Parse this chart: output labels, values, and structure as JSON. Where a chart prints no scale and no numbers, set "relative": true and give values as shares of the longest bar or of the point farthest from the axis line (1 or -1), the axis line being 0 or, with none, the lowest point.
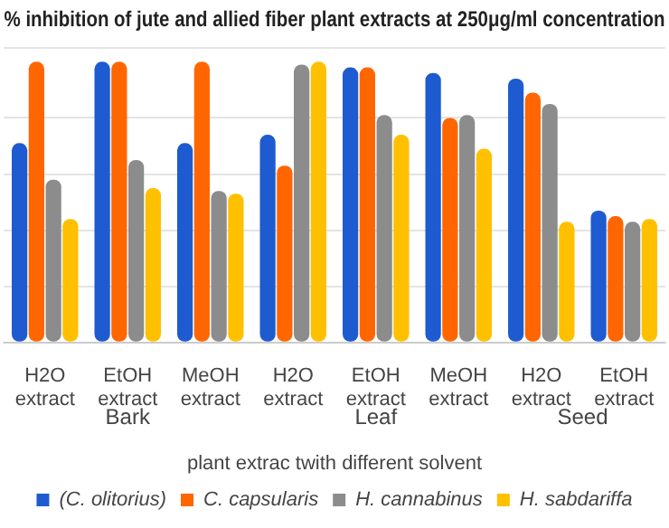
{
  "chart_data": {
    "type": "bar",
    "title": "% inhibition of jute and allied fiber plant extracts at 250μg/ml concentration",
    "xlabel": "plant extrac twith different solvent",
    "categories": [
      "H2O extract",
      "EtOH extract",
      "MeOH extract",
      "H2O extract",
      "EtOH extract",
      "MeOH extract",
      "H2O extract",
      "EtOH extract"
    ],
    "annotations": [
      "Bark",
      "Leaf",
      "Seed"
    ],
    "relative": true,
    "grid": "y",
    "legend": "bottom",
    "series": [
      {
        "name": "(C. olitorius)",
        "color": "#1f5bd0",
        "values": [
          0.71,
          1.0,
          0.71,
          0.74,
          0.98,
          0.96,
          0.94,
          0.47
        ]
      },
      {
        "name": "C. capsularis",
        "color": "#ff6600",
        "values": [
          1.0,
          1.0,
          1.0,
          0.63,
          0.98,
          0.8,
          0.89,
          0.45
        ]
      },
      {
        "name": "H. cannabinus",
        "color": "#8c8c8c",
        "values": [
          0.58,
          0.65,
          0.54,
          0.99,
          0.81,
          0.81,
          0.85,
          0.43
        ]
      },
      {
        "name": "H. sabdariffa",
        "color": "#ffc000",
        "values": [
          0.44,
          0.55,
          0.53,
          1.0,
          0.74,
          0.69,
          0.43,
          0.44
        ]
      }
    ]
  }
}
